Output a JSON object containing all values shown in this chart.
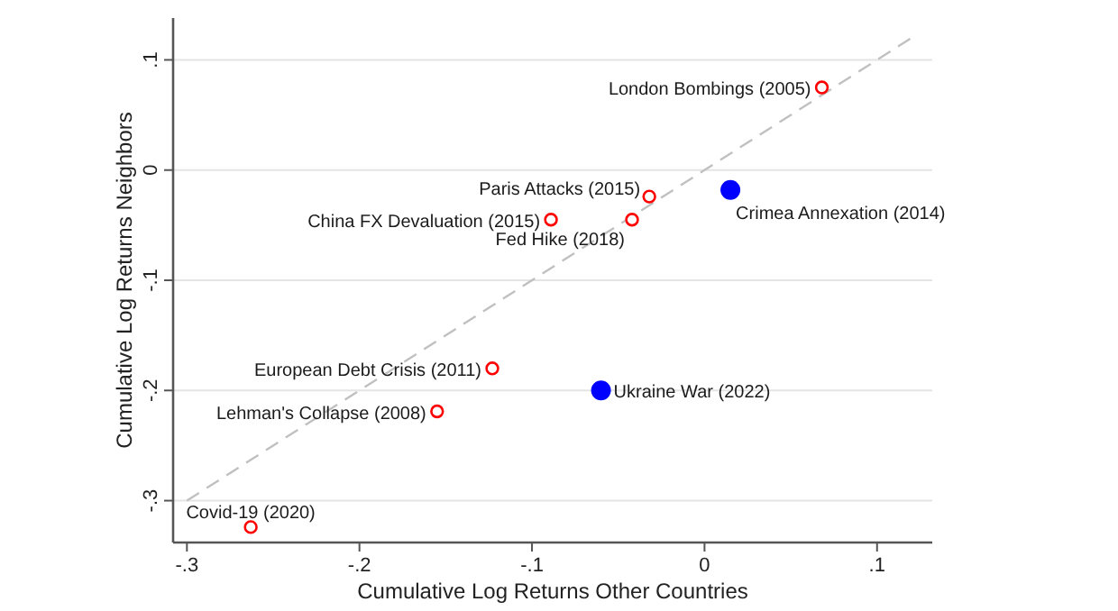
{
  "chart_data": {
    "type": "scatter",
    "xlabel": "Cumulative Log Returns Other Countries",
    "ylabel": "Cumulative Log Returns Neighbors",
    "xlim": [
      -0.308,
      0.132
    ],
    "ylim": [
      -0.338,
      0.138
    ],
    "xticks": [
      {
        "value": -0.3,
        "label": "-.3"
      },
      {
        "value": -0.2,
        "label": "-.2"
      },
      {
        "value": -0.1,
        "label": "-.1"
      },
      0,
      {
        "value": 0.1,
        "label": ".1"
      }
    ],
    "yticks": [
      {
        "value": -0.3,
        "label": "-.3"
      },
      {
        "value": -0.2,
        "label": "-.2"
      },
      {
        "value": -0.1,
        "label": "-.1"
      },
      0,
      {
        "value": 0.1,
        "label": ".1"
      }
    ],
    "grid": "y",
    "marker": "circle",
    "series": [
      {
        "type": "line",
        "marker": "none",
        "color": "#c0c0c0",
        "line_style": "dashed",
        "x": [
          -0.3,
          0.122
        ],
        "values": [
          -0.3,
          0.122
        ]
      },
      {
        "color": "#ff0000",
        "x": [
          0.068,
          -0.032,
          -0.089,
          -0.042,
          -0.123,
          -0.155,
          -0.263
        ],
        "values": [
          0.075,
          -0.024,
          -0.045,
          -0.045,
          -0.18,
          -0.219,
          -0.324
        ]
      },
      {
        "color": "#0000ff",
        "x": [
          0.015,
          -0.06
        ],
        "values": [
          -0.018,
          -0.2
        ]
      }
    ],
    "annotations": [
      {
        "text": "London Bombings (2005)",
        "x": 0.068,
        "y": 0.075
      },
      {
        "text": "Paris Attacks (2015)",
        "x": -0.032,
        "y": -0.024
      },
      {
        "text": "China FX Devaluation (2015)",
        "x": -0.089,
        "y": -0.045
      },
      {
        "text": "Fed Hike (2018)",
        "x": -0.042,
        "y": -0.045
      },
      {
        "text": "European Debt Crisis (2011)",
        "x": -0.123,
        "y": -0.18
      },
      {
        "text": "Lehman's Collapse (2008)",
        "x": -0.155,
        "y": -0.219
      },
      {
        "text": "Covid-19 (2020)",
        "x": -0.263,
        "y": -0.324
      },
      {
        "text": "Crimea Annexation (2014)",
        "x": 0.015,
        "y": -0.018
      },
      {
        "text": "Ukraine War (2022)",
        "x": -0.06,
        "y": -0.2
      }
    ]
  }
}
